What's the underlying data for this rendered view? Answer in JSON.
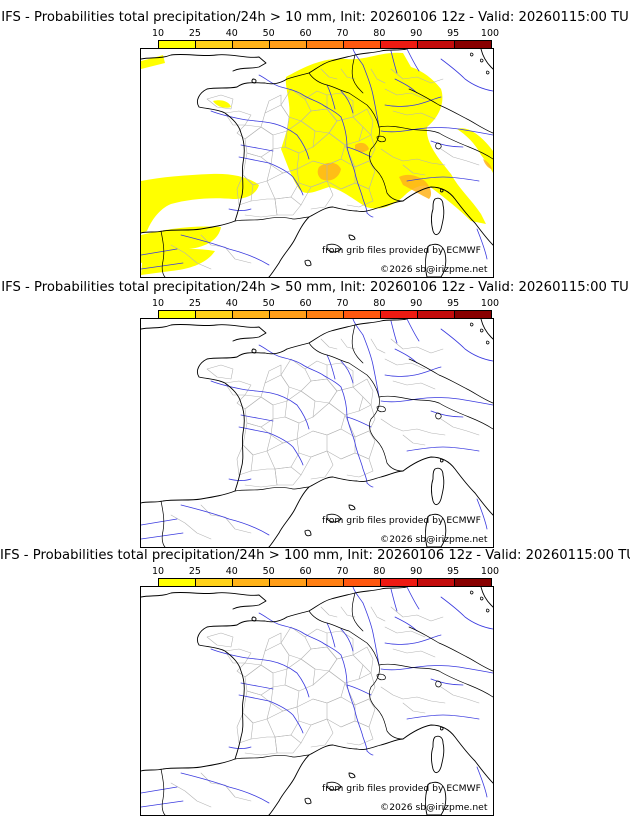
{
  "colorbar": {
    "ticks": [
      "10",
      "25",
      "40",
      "50",
      "60",
      "70",
      "80",
      "90",
      "95",
      "100"
    ],
    "colors": [
      "#ffff00",
      "#ffd21a",
      "#ffb31a",
      "#ff9d19",
      "#ff7f13",
      "#ff580f",
      "#ee1a12",
      "#c30c0c",
      "#880000",
      "#4e0000"
    ]
  },
  "panels": [
    {
      "title": "IFS - Probabilities total precipitation/24h > 10 mm, Init: 20260106 12z - Valid: 20260115:00 TU",
      "threshold_mm": 10,
      "has_precip_area": true,
      "credit": "from grib files provided by ECMWF",
      "copyright": "©2026 sb@irizpme.net"
    },
    {
      "title": "IFS - Probabilities total precipitation/24h > 50 mm, Init: 20260106 12z - Valid: 20260115:00 TU",
      "threshold_mm": 50,
      "has_precip_area": false,
      "credit": "from grib files provided by ECMWF",
      "copyright": "©2026 sb@irizpme.net"
    },
    {
      "title": "IFS - Probabilities total precipitation/24h > 100 mm, Init: 20260106 12z - Valid: 20260115:00 TU",
      "threshold_mm": 100,
      "has_precip_area": false,
      "credit": "from grib files provided by ECMWF",
      "copyright": "©2026 sb@irizpme.net"
    }
  ],
  "map_colors": {
    "coastline": "#000000",
    "rivers": "#3a3adf",
    "admin_borders": "#b4b4b4",
    "country_borders": "#000000"
  }
}
